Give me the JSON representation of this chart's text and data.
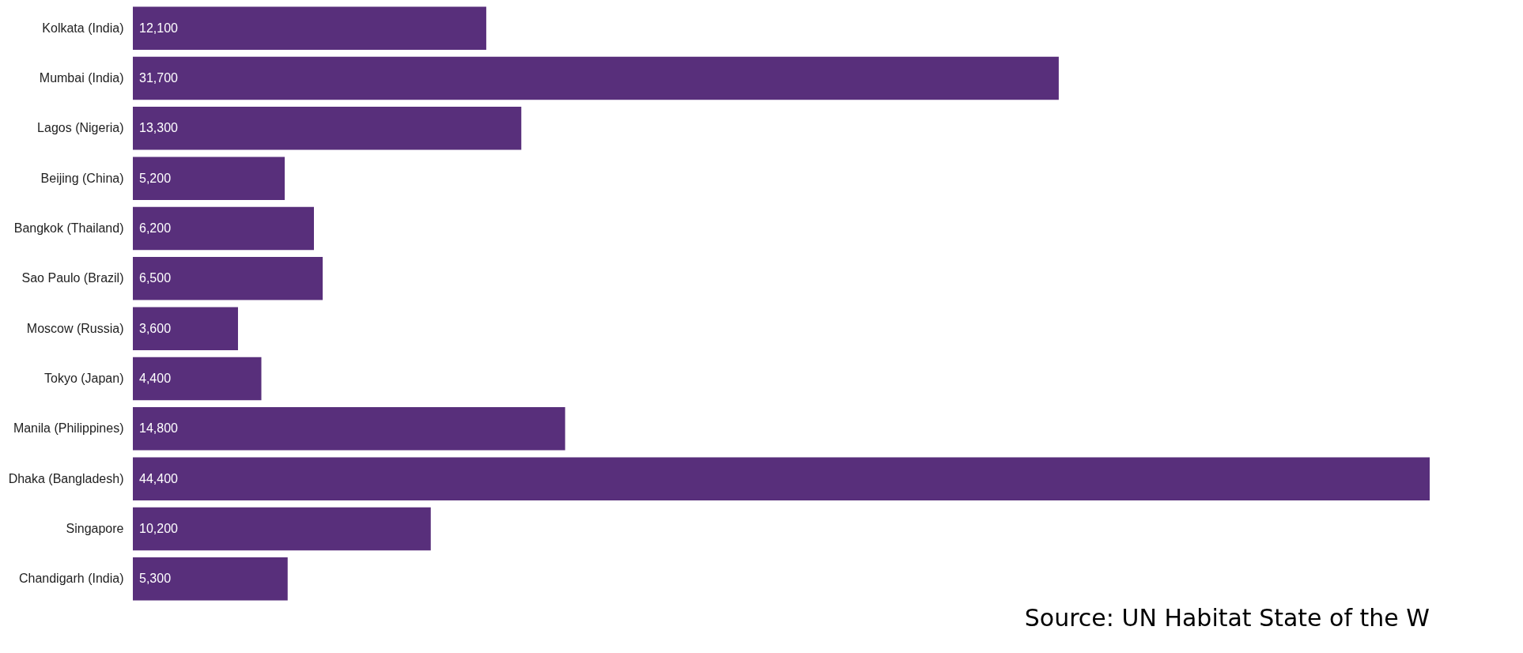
{
  "chart_data": {
    "type": "bar",
    "orientation": "horizontal",
    "categories": [
      "Kolkata (India)",
      "Mumbai (India)",
      "Lagos (Nigeria)",
      "Beijing (China)",
      "Bangkok (Thailand)",
      "Sao Paulo (Brazil)",
      "Moscow (Russia)",
      "Tokyo (Japan)",
      "Manila (Philippines)",
      "Dhaka (Bangladesh)",
      "Singapore",
      "Chandigarh (India)"
    ],
    "values": [
      12100,
      31700,
      13300,
      5200,
      6200,
      6500,
      3600,
      4400,
      14800,
      44400,
      10200,
      5300
    ],
    "value_labels": [
      "12,100",
      "31,700",
      "13,300",
      "5,200",
      "6,200",
      "6,500",
      "3,600",
      "4,400",
      "14,800",
      "44,400",
      "10,200",
      "5,300"
    ],
    "color": "#582f7b",
    "annotations": [
      "Source: UN Habitat State of the W"
    ]
  }
}
